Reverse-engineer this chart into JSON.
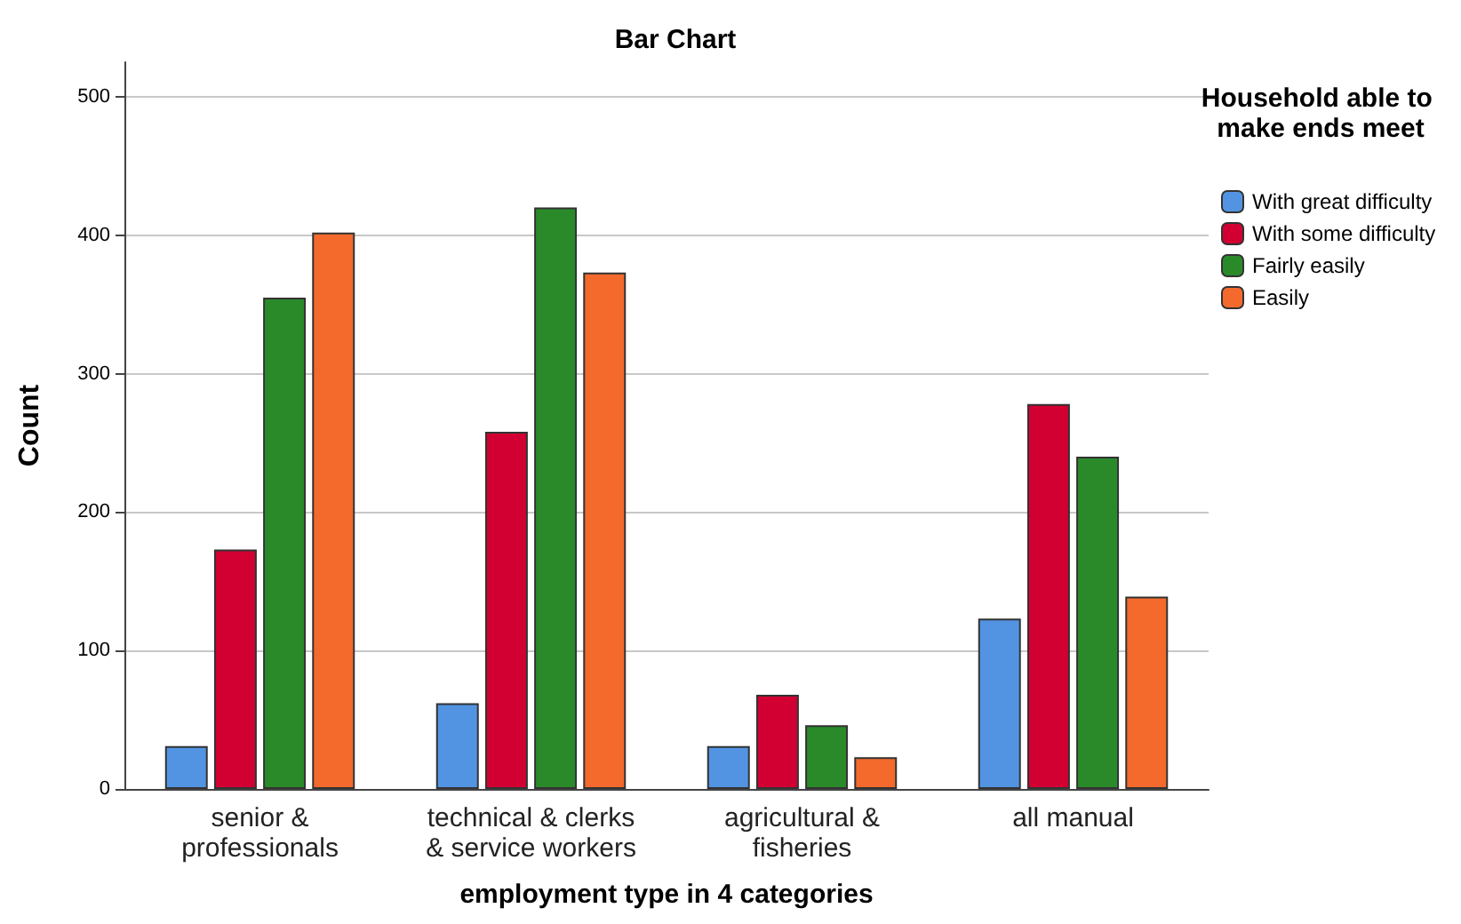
{
  "chart_data": {
    "type": "bar",
    "title": "Bar Chart",
    "xlabel": "employment type in 4 categories",
    "ylabel": "Count",
    "legend_title": "Household able to make ends meet",
    "categories": [
      "senior &\nprofessionals",
      "technical & clerks\n& service workers",
      "agricultural &\nfisheries",
      "all manual"
    ],
    "series": [
      {
        "name": "With great difficulty",
        "color": "#5294e2",
        "values": [
          31,
          62,
          31,
          123
        ]
      },
      {
        "name": "With some difficulty",
        "color": "#d20032",
        "values": [
          173,
          258,
          68,
          278
        ]
      },
      {
        "name": "Fairly easily",
        "color": "#2a8a2a",
        "values": [
          355,
          420,
          46,
          240
        ]
      },
      {
        "name": "Easily",
        "color": "#f36a2c",
        "values": [
          402,
          373,
          23,
          139
        ]
      }
    ],
    "ylim": [
      0,
      525
    ],
    "yticks": [
      0,
      100,
      200,
      300,
      400,
      500
    ],
    "grid": "y",
    "legend": "top right"
  }
}
